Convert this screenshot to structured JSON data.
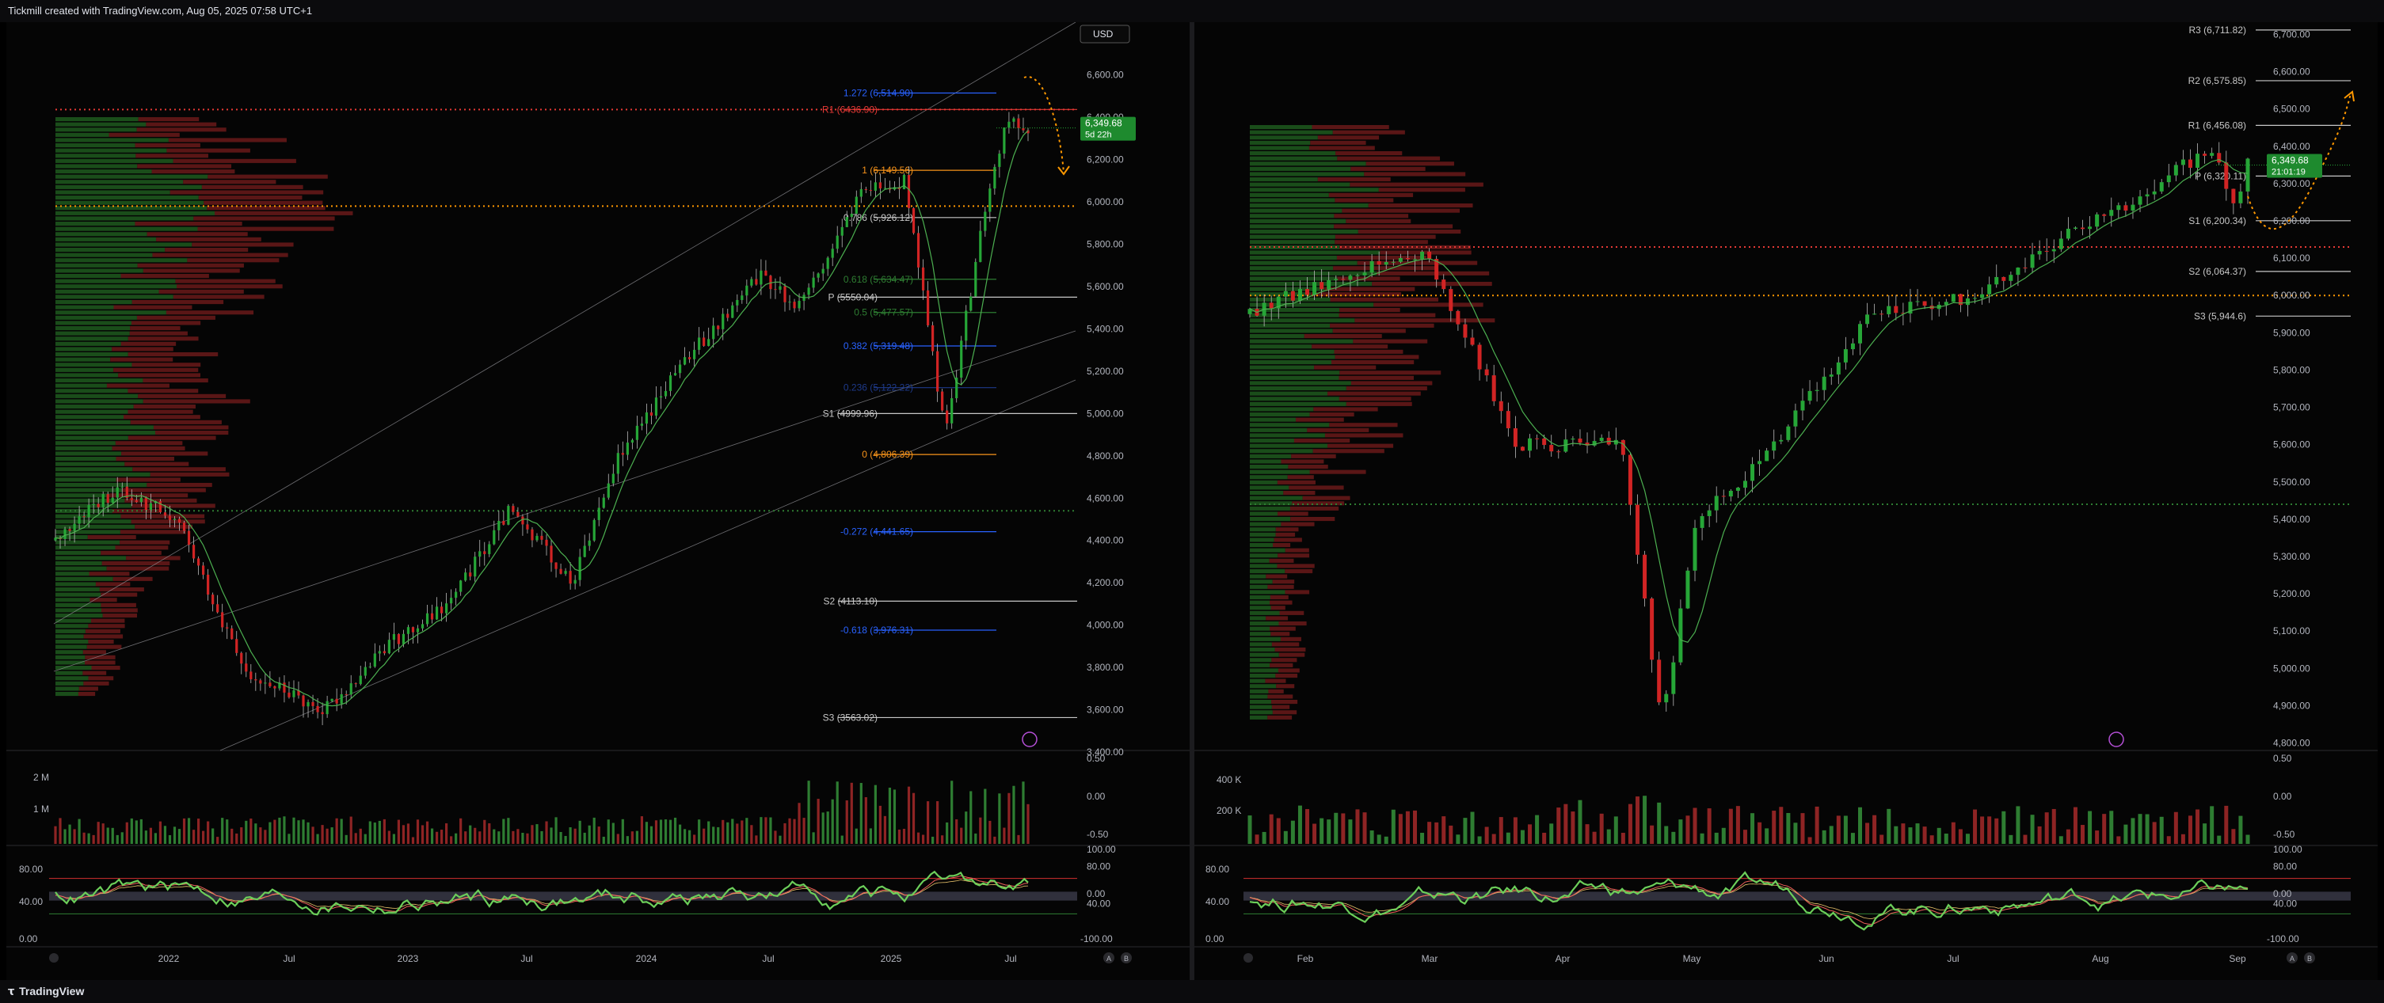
{
  "header": {
    "title": "Tickmill created with TradingView.com, Aug 05, 2025 07:58 UTC+1"
  },
  "footer": {
    "brand": "TradingView"
  },
  "colors": {
    "bull": "#26a637",
    "bear": "#d12424",
    "fib_blue": "#2962ff",
    "fib_orange": "#f7931a",
    "pivot": "#c7c7c7",
    "red_line": "#e53935",
    "orange_dots": "#ff9800",
    "rsi_line": "#6ccf5a",
    "rsi_red": "#f0605b"
  },
  "left": {
    "currency_badge": "USD",
    "price_label": "6,349.68",
    "countdown": "5d 22h",
    "price_axis": [
      "6,600.00",
      "6,400.00",
      "6,200.00",
      "6,000.00",
      "5,800.00",
      "5,600.00",
      "5,400.00",
      "5,200.00",
      "5,000.00",
      "4,800.00",
      "4,600.00",
      "4,400.00",
      "4,200.00",
      "4,000.00",
      "3,800.00",
      "3,600.00",
      "3,400.00"
    ],
    "levels": [
      "1.272 (6,514.90)",
      "R1 (6436.90)",
      "1 (6,149.56)",
      "0.786 (5,926.12)",
      "0.618 (5,634.47)",
      "P (5550.04)",
      "0.5 (5,477.57)",
      "0.382 (5,319.48)",
      "0.236 (5,122.22)",
      "S1 (4999.96)",
      "0 (4,806.39)",
      "-0.272 (4,441.65)",
      "S2 (4113.10)",
      "-0.618 (3,976.31)",
      "S3 (3563.02)"
    ],
    "time_axis": [
      "2022",
      "Jul",
      "2023",
      "Jul",
      "2024",
      "Jul",
      "2025",
      "Jul"
    ],
    "volume_axis": [
      "2 M",
      "1 M"
    ],
    "volume_osc_axis": [
      "0.50",
      "0.00",
      "-0.50"
    ],
    "rsi_axis_left": [
      "80.00",
      "40.00",
      "0.00"
    ],
    "rsi_axis_right": [
      "100.00",
      "80.00",
      "0.00",
      "40.00",
      "-100.00"
    ],
    "corner_buttons": [
      "A",
      "B"
    ]
  },
  "right": {
    "price_label": "6,349.68",
    "countdown": "21:01:19",
    "price_axis": [
      "6,700.00",
      "6,600.00",
      "6,500.00",
      "6,400.00",
      "6,300.00",
      "6,200.00",
      "6,100.00",
      "6,000.00",
      "5,900.00",
      "5,800.00",
      "5,700.00",
      "5,600.00",
      "5,500.00",
      "5,400.00",
      "5,300.00",
      "5,200.00",
      "5,100.00",
      "5,000.00",
      "4,900.00",
      "4,800.00"
    ],
    "levels": [
      "R3 (6,711.82)",
      "R2 (6,575.85)",
      "R1 (6,456.08)",
      "P (6,320.11)",
      "S1 (6,200.34)",
      "S2 (6,064.37)",
      "S3 (5,944.6)"
    ],
    "time_axis": [
      "Feb",
      "Mar",
      "Apr",
      "May",
      "Jun",
      "Jul",
      "Aug",
      "Sep"
    ],
    "volume_axis": [
      "400 K",
      "200 K"
    ],
    "volume_osc_axis": [
      "0.50",
      "0.00",
      "-0.50"
    ],
    "rsi_axis_left": [
      "80.00",
      "40.00",
      "0.00"
    ],
    "rsi_axis_right": [
      "100.00",
      "80.00",
      "0.00",
      "40.00",
      "-100.00"
    ],
    "corner_buttons": [
      "A",
      "B"
    ]
  },
  "chart_data": [
    {
      "type": "line",
      "series": [
        {
          "name": "",
          "x": [
            "2021-09",
            "2021-12",
            "2022-03",
            "2022-06",
            "2022-10",
            "2023-01",
            "2023-04",
            "2023-07",
            "2023-10",
            "2023-12",
            "2024-03",
            "2024-07",
            "2024-09",
            "2024-12",
            "2025-02",
            "2025-04",
            "2025-06",
            "2025-07",
            "2025-08"
          ],
          "values": [
            4400,
            4650,
            4500,
            3800,
            3600,
            3900,
            4100,
            4550,
            4200,
            4750,
            5200,
            5650,
            5500,
            6050,
            6100,
            4900,
            6000,
            6400,
            6349.68
          ]
        }
      ],
      "ylim": [
        3400,
        6700
      ],
      "levels": [
        6514.9,
        6436.9,
        6149.56,
        5926.12,
        5634.47,
        5550.04,
        5477.57,
        5319.48,
        5122.22,
        4999.96,
        4806.39,
        4441.65,
        4113.1,
        3976.31,
        3563.02
      ]
    },
    {
      "type": "line",
      "series": [
        {
          "name": "",
          "x": [
            "2025-01-15",
            "2025-02-01",
            "2025-02-19",
            "2025-03-10",
            "2025-03-31",
            "2025-04-08",
            "2025-04-15",
            "2025-05-01",
            "2025-05-20",
            "2025-06-10",
            "2025-06-27",
            "2025-07-15",
            "2025-07-28",
            "2025-08-01",
            "2025-08-04"
          ],
          "values": [
            5950,
            6050,
            6120,
            5600,
            5600,
            4850,
            5400,
            5600,
            5950,
            6000,
            6150,
            6280,
            6400,
            6230,
            6349.68
          ]
        }
      ],
      "ylim": [
        4780,
        6720
      ],
      "levels": [
        6711.82,
        6575.85,
        6456.08,
        6320.11,
        6200.34,
        6064.37,
        5944.6
      ]
    }
  ]
}
